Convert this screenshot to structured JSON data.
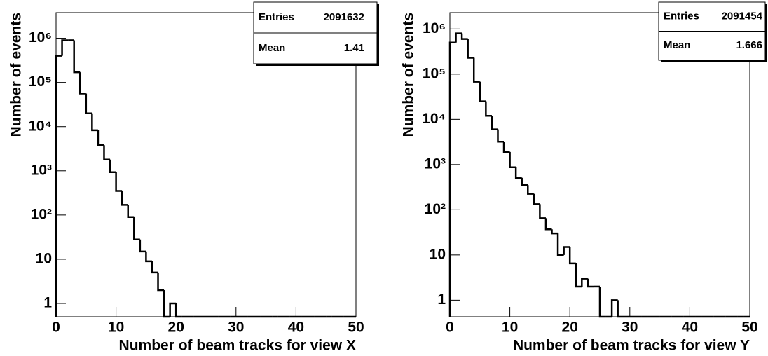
{
  "chart_data": [
    {
      "type": "histogram",
      "x_label": "Number of beam tracks for view X",
      "y_label": "Number of events",
      "log_y": true,
      "bins": [
        0,
        1,
        2,
        3,
        4,
        5,
        6,
        7,
        8,
        9,
        10,
        11,
        12,
        13,
        14,
        15,
        16,
        17,
        18,
        19,
        20,
        21,
        22,
        23,
        24,
        25,
        26,
        27,
        28,
        29,
        30,
        31,
        32,
        33,
        34,
        35,
        36,
        37,
        38,
        39,
        40,
        41,
        42,
        43,
        44,
        45,
        46,
        47,
        48,
        49,
        50
      ],
      "counts": [
        400000,
        900000,
        900000,
        170000,
        56000,
        20000,
        8300,
        3800,
        1800,
        930,
        350,
        170,
        90,
        28,
        15,
        9,
        5,
        2,
        0,
        1,
        0,
        0,
        0,
        0,
        0,
        0,
        0,
        0,
        0,
        0,
        0,
        0,
        0,
        0,
        0,
        0,
        0,
        0,
        0,
        0,
        0,
        0,
        0,
        0,
        0,
        0,
        0,
        0,
        0,
        0
      ],
      "color": "#000000",
      "xlim": [
        0,
        50
      ],
      "xticks": [
        0,
        10,
        20,
        30,
        40,
        50
      ],
      "ylim": [
        0.5,
        3800000
      ],
      "yticks": [
        1,
        10,
        {
          "value": 100,
          "label": "10²"
        },
        {
          "value": 1000,
          "label": "10³"
        },
        {
          "value": 10000,
          "label": "10⁴"
        },
        {
          "value": 100000,
          "label": "10⁵"
        },
        {
          "value": 1000000,
          "label": "10⁶"
        }
      ],
      "stats": {
        "entries_label": "Entries",
        "entries": 2091632,
        "mean_label": "Mean",
        "mean": 1.41
      }
    },
    {
      "type": "histogram",
      "x_label": "Number of beam tracks for view Y",
      "y_label": "Number of events",
      "log_y": true,
      "bins": [
        0,
        1,
        2,
        3,
        4,
        5,
        6,
        7,
        8,
        9,
        10,
        11,
        12,
        13,
        14,
        15,
        16,
        17,
        18,
        19,
        20,
        21,
        22,
        23,
        24,
        25,
        26,
        27,
        28,
        29,
        30,
        31,
        32,
        33,
        34,
        35,
        36,
        37,
        38,
        39,
        40,
        41,
        42,
        43,
        44,
        45,
        46,
        47,
        48,
        49,
        50
      ],
      "counts": [
        500000,
        800000,
        600000,
        230000,
        68000,
        25000,
        12000,
        6000,
        3200,
        1900,
        870,
        510,
        350,
        225,
        133,
        65,
        37,
        30,
        10,
        15,
        6.5,
        2,
        3,
        2,
        2,
        0,
        0,
        1,
        0,
        0,
        0,
        0,
        0,
        0,
        0,
        0,
        0,
        0,
        0,
        0,
        0,
        0,
        0,
        0,
        0,
        0,
        0,
        0,
        0,
        0
      ],
      "color": "#000000",
      "xlim": [
        0,
        50
      ],
      "xticks": [
        0,
        10,
        20,
        30,
        40,
        50
      ],
      "ylim": [
        0.43,
        2300000
      ],
      "yticks": [
        1,
        10,
        {
          "value": 100,
          "label": "10²"
        },
        {
          "value": 1000,
          "label": "10³"
        },
        {
          "value": 10000,
          "label": "10⁴"
        },
        {
          "value": 100000,
          "label": "10⁵"
        },
        {
          "value": 1000000,
          "label": "10⁶"
        }
      ],
      "stats": {
        "entries_label": "Entries",
        "entries": 2091454,
        "mean_label": "Mean",
        "mean": 1.666
      }
    }
  ]
}
